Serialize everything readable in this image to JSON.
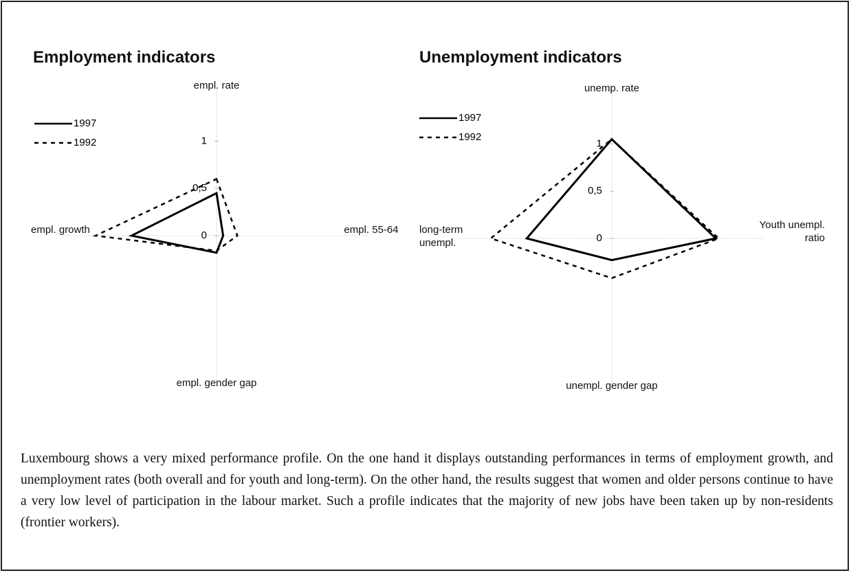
{
  "chart_data": [
    {
      "type": "radar",
      "title": "Employment indicators",
      "categories": [
        "empl. rate",
        "empl. 55-64",
        "empl. gender gap",
        "empl. growth"
      ],
      "rlim": [
        0,
        1.6
      ],
      "rticks": [
        0,
        {
          "value": 0.5,
          "label": "0,5"
        },
        1
      ],
      "series": [
        {
          "name": "1997",
          "color": "#000000",
          "dash": "solid",
          "values": [
            0.45,
            0.07,
            0.18,
            0.9
          ]
        },
        {
          "name": "1992",
          "color": "#000000",
          "dash": "dashed",
          "values": [
            0.6,
            0.22,
            0.16,
            1.28
          ]
        }
      ]
    },
    {
      "type": "radar",
      "title": "Unemployment indicators",
      "categories": [
        "unemp. rate",
        "Youth unempl. ratio",
        "unempl. gender gap",
        "long-term unempl."
      ],
      "rlim": [
        0,
        1.6
      ],
      "rticks": [
        0,
        {
          "value": 0.5,
          "label": "0,5"
        },
        1
      ],
      "series": [
        {
          "name": "1997",
          "color": "#000000",
          "dash": "solid",
          "values": [
            1.05,
            1.1,
            0.23,
            0.9
          ]
        },
        {
          "name": "1992",
          "color": "#000000",
          "dash": "dashed",
          "values": [
            1.05,
            1.13,
            0.42,
            1.28
          ]
        }
      ]
    }
  ],
  "caption": "Luxembourg shows a very mixed performance profile. On the one hand it displays outstanding performances in terms of employment growth, and unemployment rates (both overall and for youth and long-term). On the other hand, the results suggest that women and older persons continue to have a very low level of participation in the labour market. Such a profile indicates that the majority of new jobs have been taken up by non-residents (frontier workers)."
}
